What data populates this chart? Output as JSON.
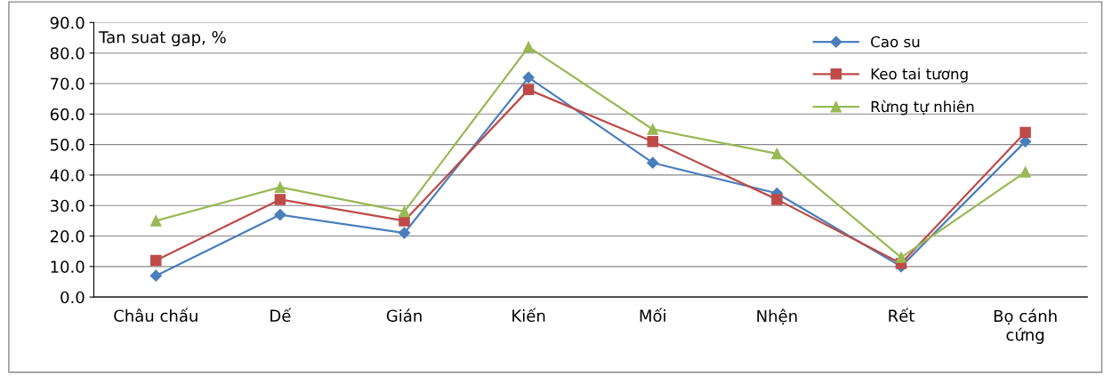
{
  "chart_data": {
    "type": "line",
    "ylabel": "Tan suat gap, %",
    "categories": [
      "Châu chấu",
      "Dế",
      "Gián",
      "Kiến",
      "Mối",
      "Nhện",
      "Rết",
      "Bọ cánh\ncứng"
    ],
    "series": [
      {
        "name": "Cao su",
        "color": "#4a7ebb",
        "marker": "diamond",
        "values": [
          7,
          27,
          21,
          72,
          44,
          34,
          10,
          51
        ]
      },
      {
        "name": "Keo tai tương",
        "color": "#be4b48",
        "marker": "square",
        "values": [
          12,
          32,
          25,
          68,
          51,
          32,
          11,
          54
        ]
      },
      {
        "name": "Rừng tự nhiên",
        "color": "#98b954",
        "marker": "triangle",
        "values": [
          25,
          36,
          28,
          82,
          55,
          47,
          13,
          41
        ]
      }
    ],
    "ylim": [
      0,
      90
    ],
    "yticks": [
      {
        "value": 0,
        "label": "0.0"
      },
      {
        "value": 10,
        "label": "10.0"
      },
      {
        "value": 20,
        "label": "20.0"
      },
      {
        "value": 30,
        "label": "30.0"
      },
      {
        "value": 40,
        "label": "40.0"
      },
      {
        "value": 50,
        "label": "50.0"
      },
      {
        "value": 60,
        "label": "60.0"
      },
      {
        "value": 70,
        "label": "70.0"
      },
      {
        "value": 80,
        "label": "80.0"
      },
      {
        "value": 90,
        "label": "90.0"
      }
    ],
    "grid": "y",
    "legend": "top right",
    "line_style": "solid"
  }
}
